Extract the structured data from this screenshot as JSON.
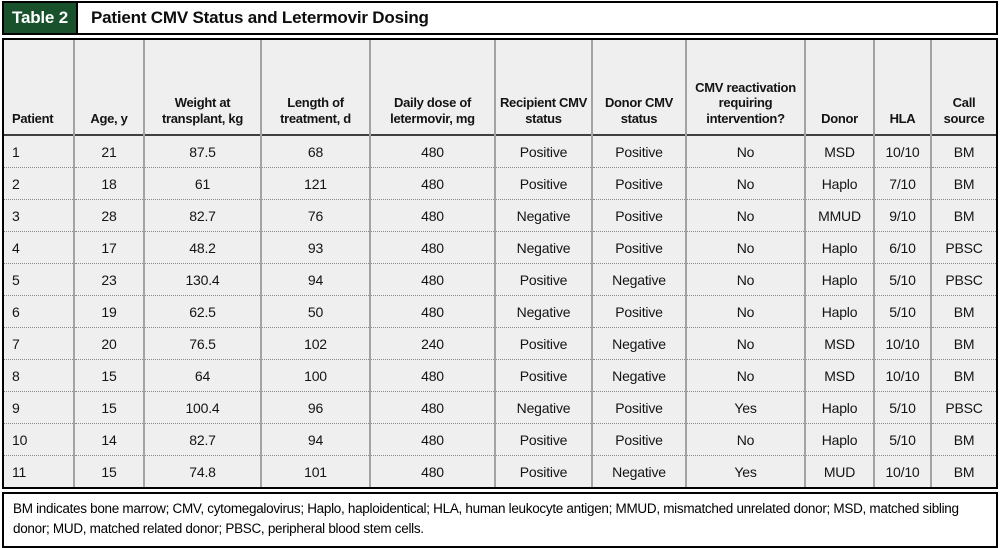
{
  "title": {
    "tag": "Table 2",
    "heading": "Patient CMV Status and Letermovir Dosing"
  },
  "table": {
    "columns": [
      "Patient",
      "Age, y",
      "Weight at transplant, kg",
      "Length of treatment, d",
      "Daily dose of letermovir, mg",
      "Recipient CMV status",
      "Donor CMV status",
      "CMV reactivation requiring intervention?",
      "Donor",
      "HLA",
      "Call source"
    ],
    "rows": [
      [
        "1",
        "21",
        "87.5",
        "68",
        "480",
        "Positive",
        "Positive",
        "No",
        "MSD",
        "10/10",
        "BM"
      ],
      [
        "2",
        "18",
        "61",
        "121",
        "480",
        "Positive",
        "Positive",
        "No",
        "Haplo",
        "7/10",
        "BM"
      ],
      [
        "3",
        "28",
        "82.7",
        "76",
        "480",
        "Negative",
        "Positive",
        "No",
        "MMUD",
        "9/10",
        "BM"
      ],
      [
        "4",
        "17",
        "48.2",
        "93",
        "480",
        "Negative",
        "Positive",
        "No",
        "Haplo",
        "6/10",
        "PBSC"
      ],
      [
        "5",
        "23",
        "130.4",
        "94",
        "480",
        "Positive",
        "Negative",
        "No",
        "Haplo",
        "5/10",
        "PBSC"
      ],
      [
        "6",
        "19",
        "62.5",
        "50",
        "480",
        "Negative",
        "Positive",
        "No",
        "Haplo",
        "5/10",
        "BM"
      ],
      [
        "7",
        "20",
        "76.5",
        "102",
        "240",
        "Positive",
        "Negative",
        "No",
        "MSD",
        "10/10",
        "BM"
      ],
      [
        "8",
        "15",
        "64",
        "100",
        "480",
        "Positive",
        "Negative",
        "No",
        "MSD",
        "10/10",
        "BM"
      ],
      [
        "9",
        "15",
        "100.4",
        "96",
        "480",
        "Negative",
        "Positive",
        "Yes",
        "Haplo",
        "5/10",
        "PBSC"
      ],
      [
        "10",
        "14",
        "82.7",
        "94",
        "480",
        "Positive",
        "Positive",
        "No",
        "Haplo",
        "5/10",
        "BM"
      ],
      [
        "11",
        "15",
        "74.8",
        "101",
        "480",
        "Positive",
        "Negative",
        "Yes",
        "MUD",
        "10/10",
        "BM"
      ]
    ]
  },
  "footnote": {
    "text": "BM indicates bone marrow; CMV, cytomegalovirus; Haplo, haploidentical; HLA, human leukocyte antigen; MMUD, mismatched unrelated donor; MSD, matched sibling donor; MUD, matched related donor; PBSC, peripheral blood stem cells."
  },
  "colors": {
    "tag_green": "#18512b",
    "cell_gray": "#efefef",
    "grid_gray": "#a3a3a3",
    "border_black": "#000000"
  }
}
